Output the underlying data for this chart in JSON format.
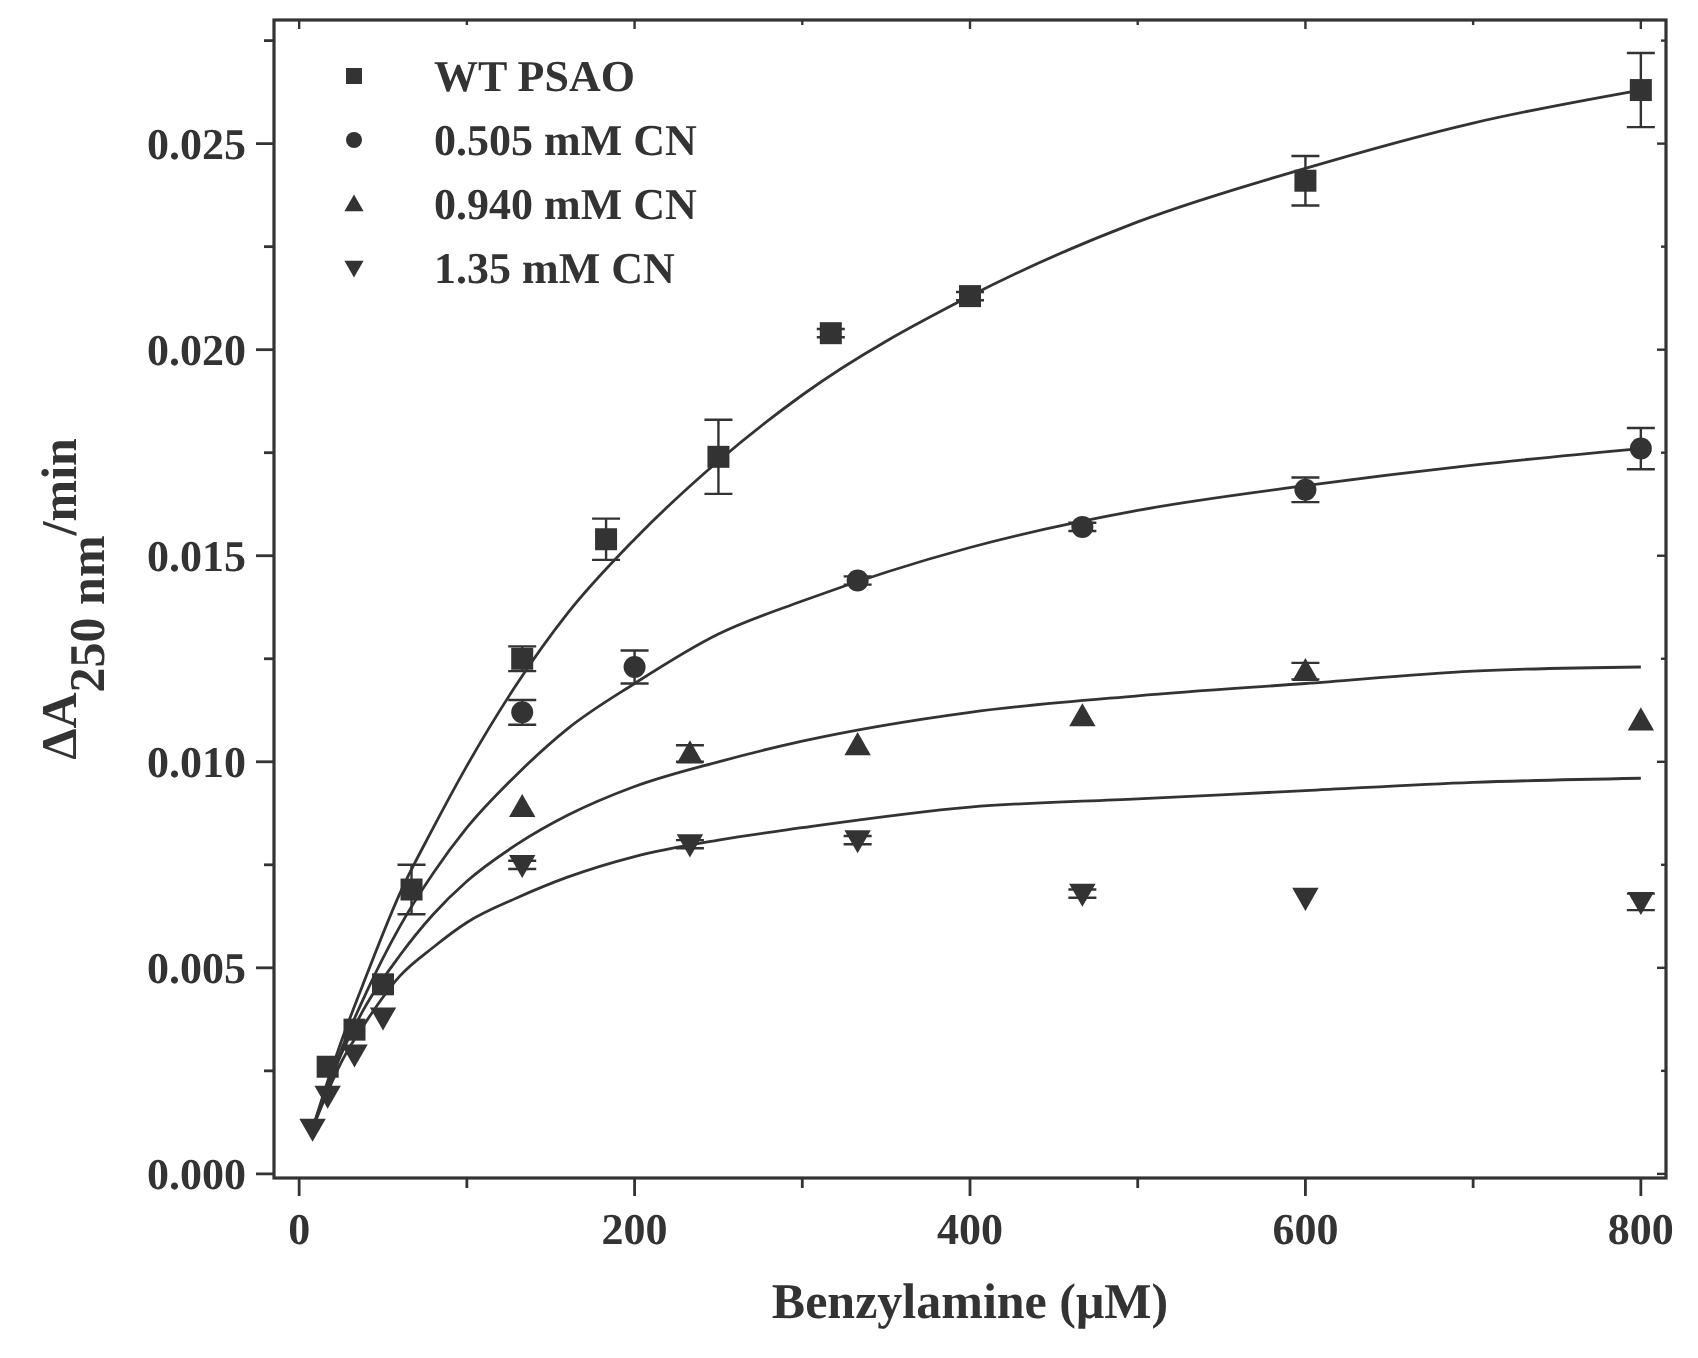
{
  "chart_data": {
    "type": "scatter",
    "xlabel": "Benzylamine (μM)",
    "ylabel": "ΔA$_{250 nm}$/min",
    "xlim": [
      -15,
      815
    ],
    "ylim": [
      -0.0001,
      0.028
    ],
    "xticks": [
      0,
      {
        "value": 100,
        "label": null
      },
      200,
      {
        "value": 300,
        "label": null
      },
      400,
      {
        "value": 500,
        "label": null
      },
      600,
      {
        "value": 700,
        "label": null
      },
      800
    ],
    "yticks": [
      {
        "value": 0,
        "label": "0.000"
      },
      {
        "value": 0.0025,
        "label": null
      },
      {
        "value": 0.005,
        "label": "0.005"
      },
      {
        "value": 0.0075,
        "label": null
      },
      {
        "value": 0.01,
        "label": "0.010"
      },
      {
        "value": 0.0125,
        "label": null
      },
      {
        "value": 0.015,
        "label": "0.015"
      },
      {
        "value": 0.0175,
        "label": null
      },
      {
        "value": 0.02,
        "label": "0.020"
      },
      {
        "value": 0.0225,
        "label": null
      },
      {
        "value": 0.025,
        "label": "0.025"
      },
      {
        "value": 0.0275,
        "label": null
      }
    ],
    "grid": false,
    "legend": "top left",
    "series": [
      {
        "name": "WT PSAO",
        "marker": "square",
        "color": "#333333",
        "x": [
          17,
          33,
          50,
          67,
          133,
          183,
          250,
          317,
          400,
          600,
          800
        ],
        "values": [
          0.0026,
          0.0035,
          0.0046,
          0.0069,
          0.0125,
          0.0154,
          0.0174,
          0.0204,
          0.0213,
          0.0241,
          0.0263
        ],
        "errors": [
          null,
          null,
          null,
          0.0006,
          0.0003,
          0.0005,
          0.0009,
          0.0001,
          0.0001,
          0.0006,
          0.0009
        ]
      },
      {
        "name": "0.505 mM CN",
        "marker": "circle",
        "color": "#333333",
        "x": [
          133,
          200,
          333,
          467,
          600,
          800
        ],
        "values": [
          0.0112,
          0.0123,
          0.0144,
          0.0157,
          0.0166,
          0.0176
        ],
        "errors": [
          0.0003,
          0.0004,
          0.0001,
          0.0001,
          0.0003,
          0.0005
        ]
      },
      {
        "name": "0.940 mM CN",
        "marker": "triangle",
        "color": "#333333",
        "x": [
          133,
          233,
          333,
          467,
          600,
          800
        ],
        "values": [
          0.0089,
          0.0102,
          0.0104,
          0.0111,
          0.0122,
          0.011
        ],
        "errors": [
          null,
          0.0002,
          null,
          null,
          0.0002,
          null
        ]
      },
      {
        "name": "1.35 mM CN",
        "marker": "triangle-down",
        "color": "#333333",
        "x": [
          8,
          17,
          33,
          50,
          133,
          233,
          333,
          467,
          600,
          800
        ],
        "values": [
          0.0011,
          0.0019,
          0.0029,
          0.0038,
          0.0075,
          0.008,
          0.0081,
          0.0068,
          0.0067,
          0.0066
        ],
        "errors": [
          null,
          null,
          null,
          null,
          0.0001,
          0.0001,
          0.0001,
          0.0001,
          null,
          0.0002
        ]
      },
      {
        "type": "line",
        "marker": "none",
        "line_style": "solid",
        "color": "#333333",
        "x": [
          8,
          15,
          25,
          40,
          60,
          80,
          100,
          130,
          160,
          200,
          250,
          300,
          400,
          500,
          600,
          700,
          800
        ],
        "values": [
          0.0011,
          0.002,
          0.0032,
          0.0048,
          0.0068,
          0.0084,
          0.0099,
          0.0119,
          0.0136,
          0.0154,
          0.0173,
          0.0189,
          0.0213,
          0.0231,
          0.0244,
          0.0255,
          0.0263
        ]
      },
      {
        "type": "line",
        "marker": "none",
        "line_style": "solid",
        "color": "#333333",
        "x": [
          8,
          15,
          25,
          40,
          60,
          80,
          100,
          130,
          160,
          200,
          250,
          300,
          400,
          500,
          600,
          700,
          800
        ],
        "values": [
          0.0011,
          0.0019,
          0.003,
          0.0044,
          0.006,
          0.0073,
          0.0084,
          0.0097,
          0.0108,
          0.0119,
          0.0131,
          0.0139,
          0.0152,
          0.0161,
          0.0167,
          0.0172,
          0.0176
        ]
      },
      {
        "type": "line",
        "marker": "none",
        "line_style": "solid",
        "color": "#333333",
        "x": [
          8,
          15,
          25,
          40,
          60,
          80,
          100,
          130,
          160,
          200,
          250,
          300,
          400,
          500,
          600,
          700,
          800
        ],
        "values": [
          0.0011,
          0.0019,
          0.0029,
          0.0041,
          0.0053,
          0.0063,
          0.0071,
          0.008,
          0.0087,
          0.0094,
          0.01,
          0.0105,
          0.0112,
          0.0116,
          0.0119,
          0.0122,
          0.0123
        ]
      },
      {
        "type": "line",
        "marker": "none",
        "line_style": "solid",
        "color": "#333333",
        "x": [
          8,
          15,
          25,
          40,
          60,
          80,
          100,
          130,
          160,
          200,
          250,
          300,
          400,
          500,
          600,
          700,
          800
        ],
        "values": [
          0.0011,
          0.0018,
          0.0027,
          0.0037,
          0.0048,
          0.0055,
          0.0061,
          0.0067,
          0.0072,
          0.0077,
          0.0081,
          0.0084,
          0.0089,
          0.0091,
          0.0093,
          0.0095,
          0.0096
        ]
      }
    ]
  }
}
